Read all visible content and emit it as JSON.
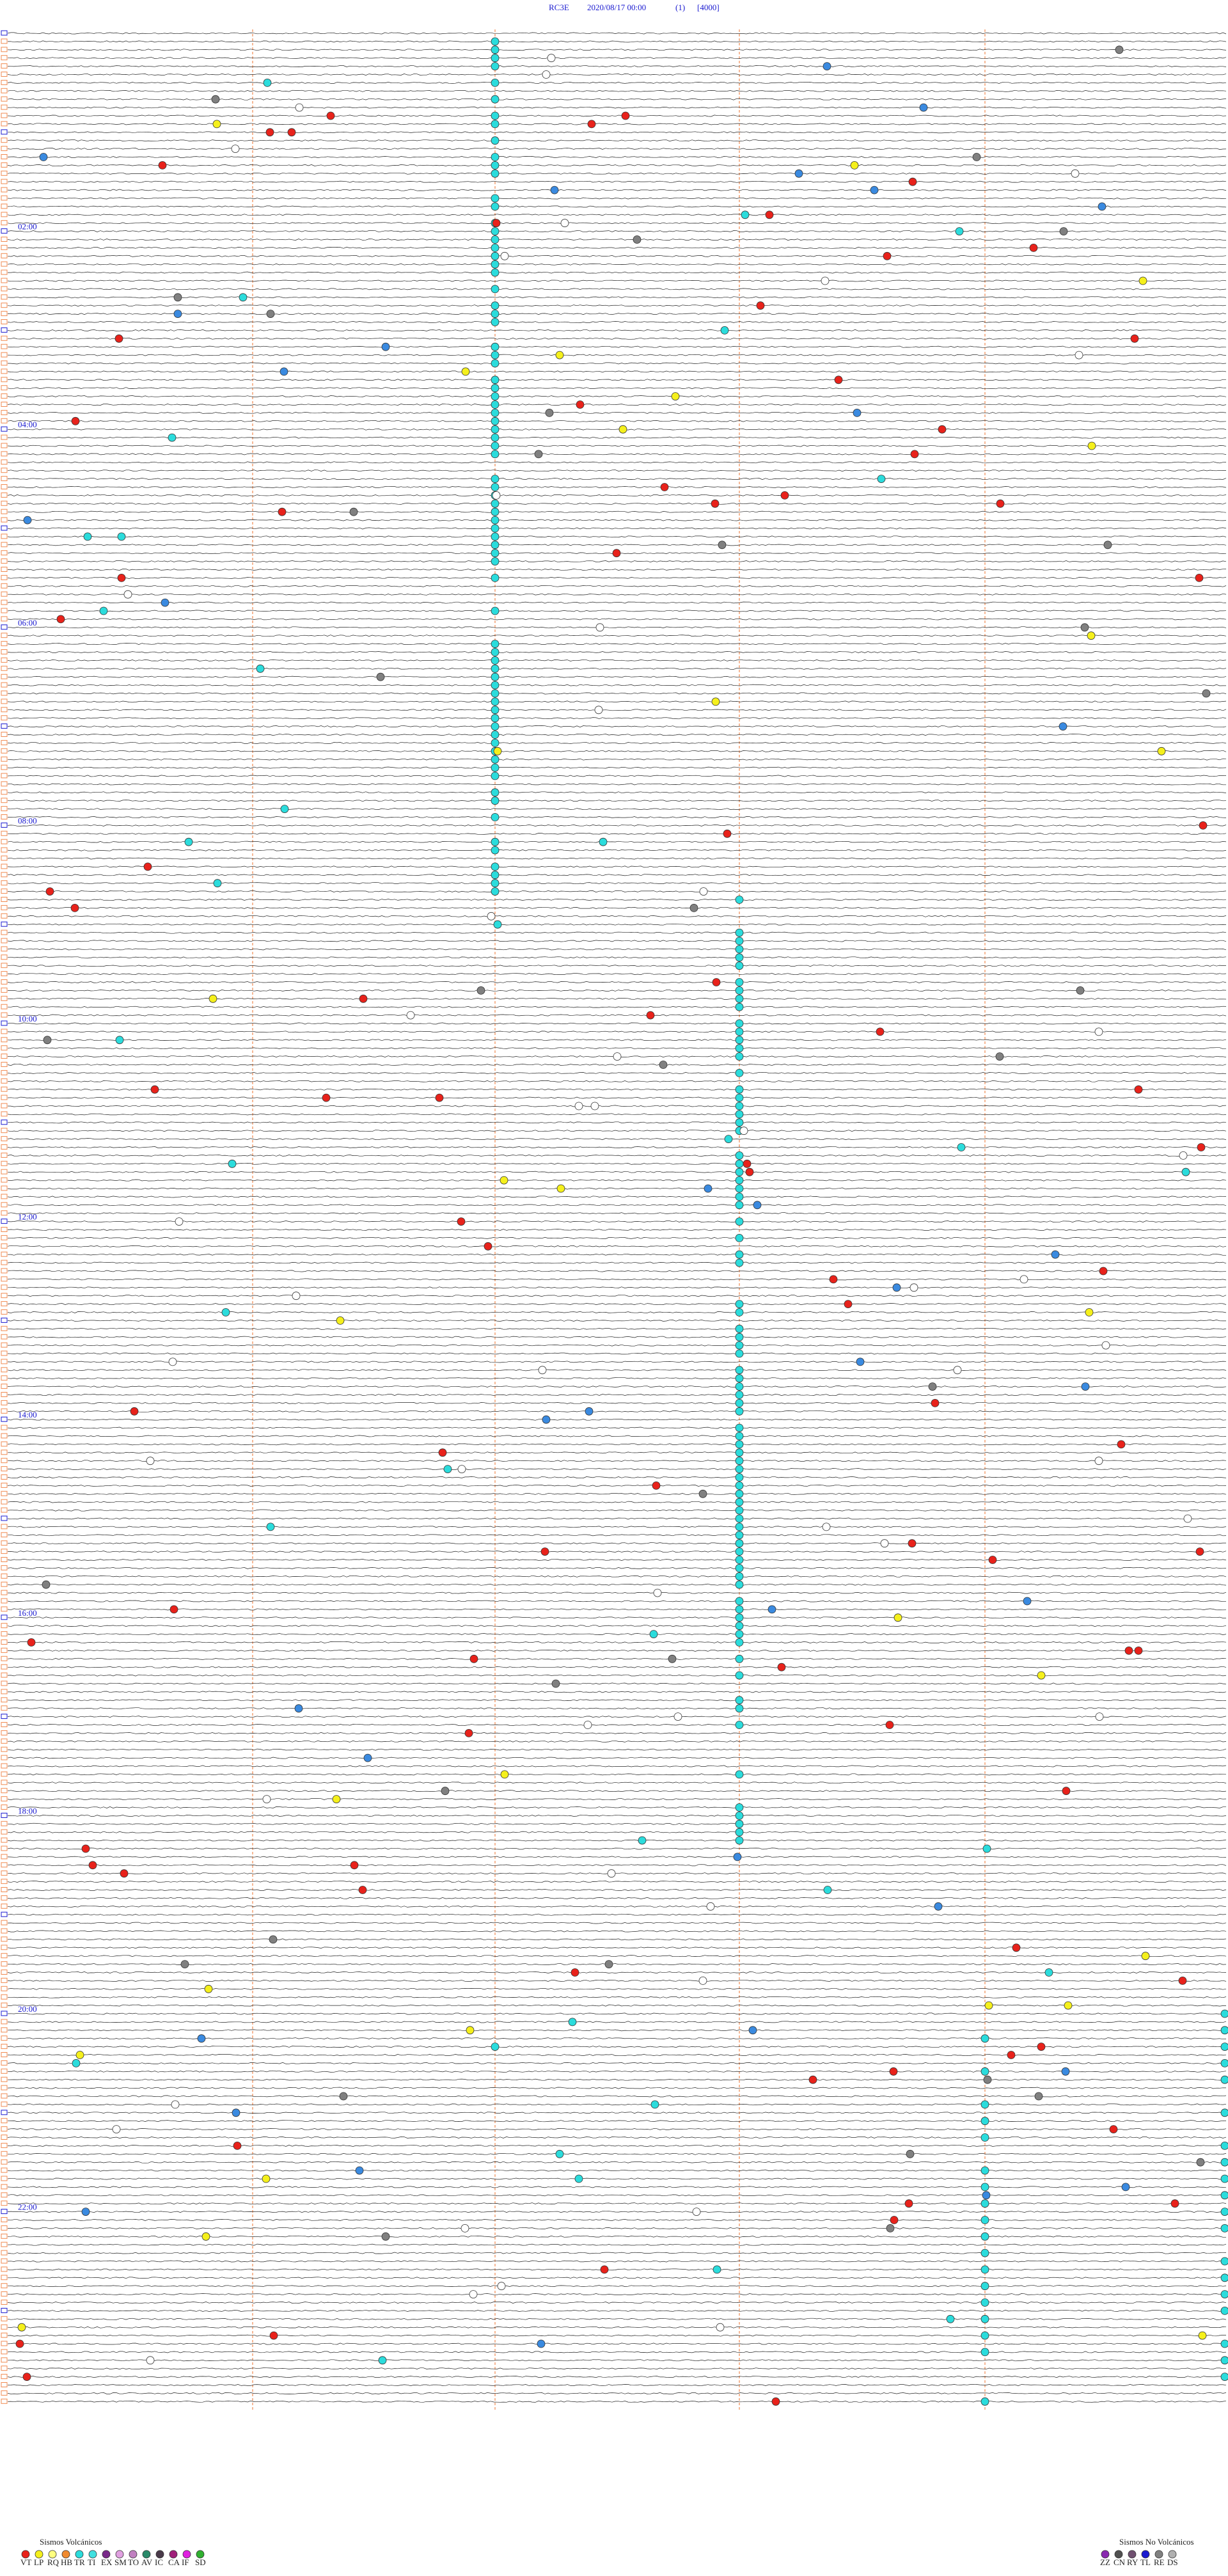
{
  "header": {
    "station": "RC3E",
    "datetime": "2020/08/17 00:00",
    "channel": "(1)",
    "scale": "[4000]"
  },
  "hour_labels": [
    "02:00",
    "04:00",
    "06:00",
    "08:00",
    "10:00",
    "12:00",
    "14:00",
    "16:00",
    "18:00",
    "20:00",
    "22:00"
  ],
  "legend": {
    "volcanic": {
      "title": "Sismos Volcánicos",
      "items": [
        {
          "label": "VT",
          "color": "#e8221b"
        },
        {
          "label": "LP",
          "color": "#f5f01c"
        },
        {
          "label": "RQ",
          "color": "#ffff80"
        },
        {
          "label": "HB",
          "color": "#f08a30"
        },
        {
          "label": "TR",
          "color": "#2bdcdc"
        },
        {
          "label": "TI",
          "color": "#40e0e0"
        },
        {
          "label": "EX",
          "color": "#7a2a8a"
        },
        {
          "label": "SM",
          "color": "#e0a0e0"
        },
        {
          "label": "TO",
          "color": "#c080c0"
        },
        {
          "label": "AV",
          "color": "#2a8a6a"
        },
        {
          "label": "IC",
          "color": "#4a3a4a"
        },
        {
          "label": "CA",
          "color": "#a0207a"
        },
        {
          "label": "IF",
          "color": "#e020e0"
        },
        {
          "label": "SD",
          "color": "#30b030"
        }
      ]
    },
    "non_volcanic": {
      "title": "Sismos No Volcánicos",
      "items": [
        {
          "label": "ZZ",
          "color": "#8a2ab0"
        },
        {
          "label": "CN",
          "color": "#505050"
        },
        {
          "label": "RY",
          "color": "#705070"
        },
        {
          "label": "TL",
          "color": "#1a1ad0"
        },
        {
          "label": "RE",
          "color": "#808080"
        },
        {
          "label": "DS",
          "color": "#b0b0b0"
        }
      ]
    }
  }
}
